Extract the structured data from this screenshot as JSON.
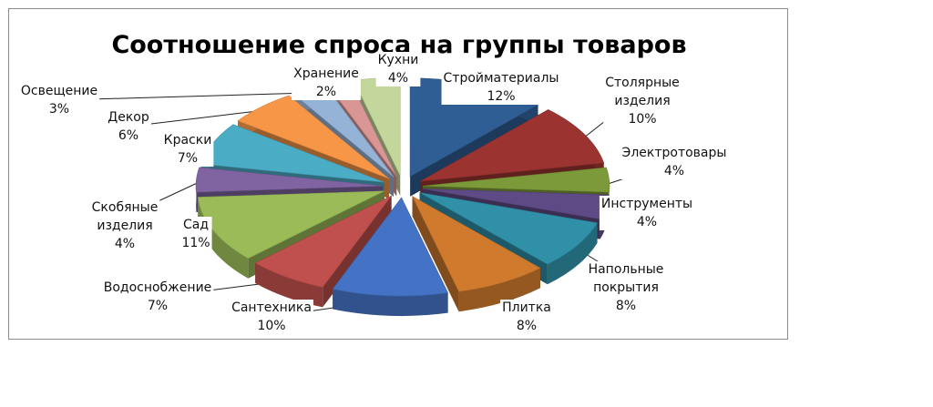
{
  "chart_data": {
    "type": "pie",
    "title": "Соотношение спроса на группы товаров",
    "slices": [
      {
        "label": "Стройматериалы",
        "value": 12,
        "text": "12%",
        "color": "#2f5e94"
      },
      {
        "label": "Столярные изделия",
        "value": 10,
        "text": "10%",
        "color": "#9b3431"
      },
      {
        "label": "Электротовары",
        "value": 4,
        "text": "4%",
        "color": "#7d9a3a"
      },
      {
        "label": "Инструменты",
        "value": 4,
        "text": "4%",
        "color": "#5e4a84"
      },
      {
        "label": "Напольные покрытия",
        "value": 8,
        "text": "8%",
        "color": "#2f90a8"
      },
      {
        "label": "Плитка",
        "value": 8,
        "text": "8%",
        "color": "#d07a2e"
      },
      {
        "label": "Сантехника",
        "value": 10,
        "text": "10%",
        "color": "#4472c4"
      },
      {
        "label": "Водоснобжение",
        "value": 7,
        "text": "7%",
        "color": "#c0504d"
      },
      {
        "label": "Сад",
        "value": 11,
        "text": "11%",
        "color": "#9bbb59"
      },
      {
        "label": "Скобяные изделия",
        "value": 4,
        "text": "4%",
        "color": "#8064a2"
      },
      {
        "label": "Краски",
        "value": 7,
        "text": "7%",
        "color": "#4bacc6"
      },
      {
        "label": "Декор",
        "value": 6,
        "text": "6%",
        "color": "#f79646"
      },
      {
        "label": "Освещение",
        "value": 3,
        "text": "3%",
        "color": "#95b3d7"
      },
      {
        "label": "Хранение",
        "value": 2,
        "text": "2%",
        "color": "#d99694"
      },
      {
        "label": "Кухни",
        "value": 4,
        "text": "4%",
        "color": "#c3d69b"
      }
    ]
  }
}
